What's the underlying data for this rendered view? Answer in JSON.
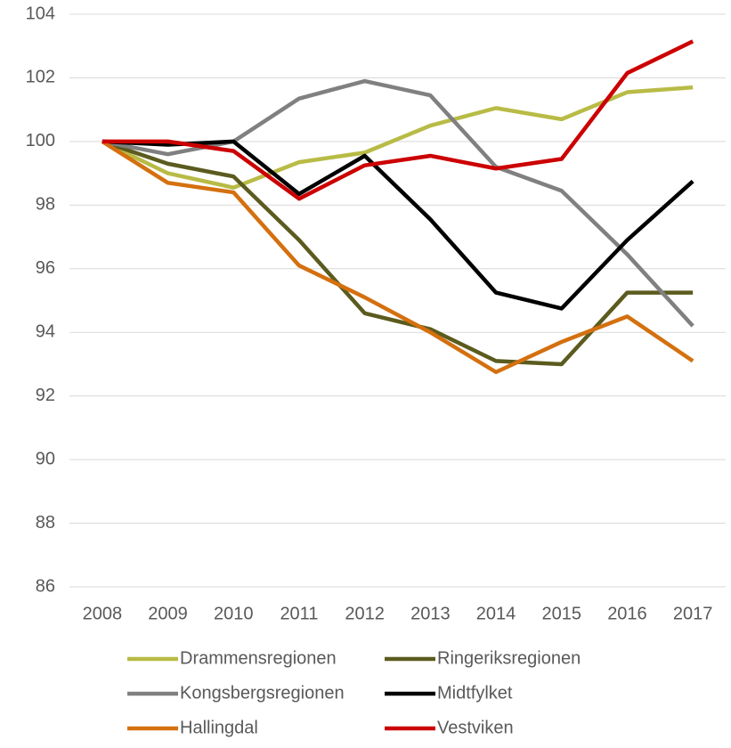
{
  "chart_data": {
    "type": "line",
    "categories": [
      "2008",
      "2009",
      "2010",
      "2011",
      "2012",
      "2013",
      "2014",
      "2015",
      "2016",
      "2017"
    ],
    "ylim": [
      86,
      104
    ],
    "yticks": [
      86,
      88,
      90,
      92,
      94,
      96,
      98,
      100,
      102,
      104
    ],
    "grid": true,
    "legend": "bottom",
    "series": [
      {
        "name": "Drammensregionen",
        "color": "#b8bb45",
        "values": [
          100,
          99.0,
          98.55,
          99.35,
          99.65,
          100.5,
          101.05,
          100.7,
          101.55,
          101.7
        ]
      },
      {
        "name": "Ringeriksregionen",
        "color": "#5b5b1f",
        "values": [
          100,
          99.3,
          98.9,
          96.9,
          94.6,
          94.1,
          93.1,
          93.0,
          95.25,
          95.25
        ]
      },
      {
        "name": "Kongsbergsregionen",
        "color": "#808080",
        "values": [
          100,
          99.6,
          100.0,
          101.35,
          101.9,
          101.45,
          99.2,
          98.45,
          96.45,
          94.2
        ]
      },
      {
        "name": "Midtfylket",
        "color": "#000000",
        "values": [
          100,
          99.9,
          100.0,
          98.35,
          99.55,
          97.55,
          95.25,
          94.75,
          96.9,
          98.75
        ]
      },
      {
        "name": "Hallingdal",
        "color": "#d4700f",
        "values": [
          100,
          98.7,
          98.4,
          96.1,
          95.1,
          94.0,
          92.75,
          93.7,
          94.5,
          93.1
        ]
      },
      {
        "name": "Vestviken",
        "color": "#cc0000",
        "values": [
          100,
          100,
          99.7,
          98.2,
          99.25,
          99.55,
          99.15,
          99.45,
          102.15,
          103.15
        ]
      }
    ]
  }
}
